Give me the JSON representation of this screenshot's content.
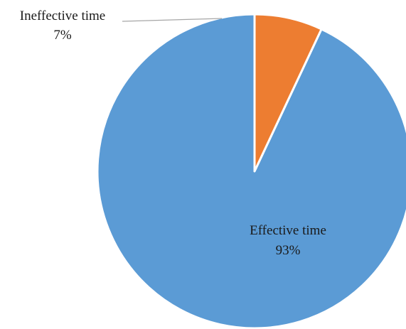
{
  "chart_data": {
    "type": "pie",
    "slices": [
      {
        "label": "Effective time",
        "value": 93,
        "value_label": "93%",
        "color": "#5b9bd5"
      },
      {
        "label": "Ineffective time",
        "value": 7,
        "value_label": "7%",
        "color": "#ed7d31"
      }
    ],
    "start_angle_deg": 0,
    "direction": "counterclockwise",
    "legend": "none",
    "data_labels": "category and percentage",
    "slice_border_color": "#ffffff"
  }
}
